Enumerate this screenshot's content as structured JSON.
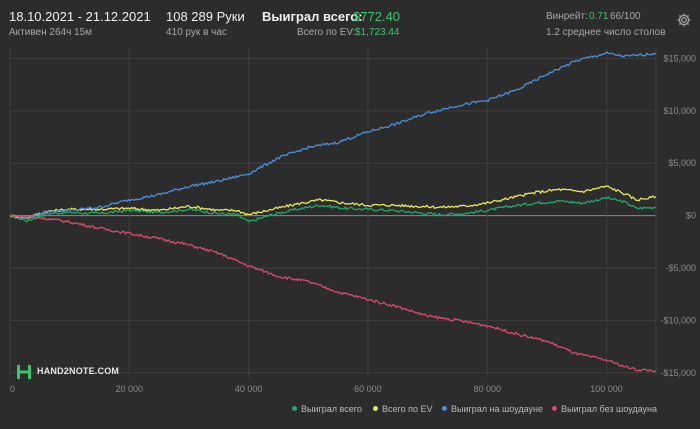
{
  "header": {
    "date_range": "18.10.2021 - 21.12.2021",
    "active_time": "Активен 264ч 15м",
    "hands": "108 289 Руки",
    "hands_per_hour": "410 рук в час",
    "won_total_label": "Выиграл всего:",
    "won_total_value": "$772.40",
    "ev_total_label": "Всего по EV:",
    "ev_total_value": "$1,723.44",
    "winrate_label": "Винрейт:",
    "winrate_value": "0.71",
    "winrate_hands": "66/100",
    "avg_tables": "1.2 среднее число столов"
  },
  "logo": {
    "text": "HAND2NOTE.COM"
  },
  "colors": {
    "background": "#2c2c2c",
    "grid": "#3e3e3e",
    "total": "#20a86a",
    "ev": "#e8e85a",
    "showdown": "#4a90d9",
    "non_showdown": "#d94a6e"
  },
  "chart_data": {
    "type": "line",
    "xlim": [
      0,
      108289
    ],
    "ylim": [
      -15500,
      16000
    ],
    "x_ticks": [
      {
        "v": 0,
        "label": "0"
      },
      {
        "v": 20000,
        "label": "20 000"
      },
      {
        "v": 40000,
        "label": "40 000"
      },
      {
        "v": 60000,
        "label": "60 000"
      },
      {
        "v": 80000,
        "label": "80 000"
      },
      {
        "v": 100000,
        "label": "100 000"
      }
    ],
    "y_ticks": [
      {
        "v": 15000,
        "label": "$15,000"
      },
      {
        "v": 10000,
        "label": "$10,000"
      },
      {
        "v": 5000,
        "label": "$5,000"
      },
      {
        "v": 0,
        "label": "$0"
      },
      {
        "v": -5000,
        "label": "-$5,000"
      },
      {
        "v": -10000,
        "label": "-$10,000"
      },
      {
        "v": -15000,
        "label": "-$15,000"
      }
    ],
    "grid": true,
    "legend_position": "bottom-right",
    "series": [
      {
        "name": "Выиграл всего",
        "color": "#20a86a",
        "points": [
          [
            0,
            0
          ],
          [
            3000,
            -500
          ],
          [
            6000,
            200
          ],
          [
            10000,
            300
          ],
          [
            15000,
            200
          ],
          [
            20000,
            500
          ],
          [
            25000,
            300
          ],
          [
            30000,
            600
          ],
          [
            35000,
            200
          ],
          [
            38000,
            100
          ],
          [
            40000,
            -600
          ],
          [
            44000,
            100
          ],
          [
            48000,
            600
          ],
          [
            52000,
            1000
          ],
          [
            56000,
            700
          ],
          [
            60000,
            600
          ],
          [
            64000,
            500
          ],
          [
            68000,
            300
          ],
          [
            72000,
            100
          ],
          [
            76000,
            200
          ],
          [
            80000,
            500
          ],
          [
            84000,
            900
          ],
          [
            88000,
            1200
          ],
          [
            92000,
            1400
          ],
          [
            96000,
            1200
          ],
          [
            100000,
            1700
          ],
          [
            103000,
            1300
          ],
          [
            105000,
            700
          ],
          [
            108289,
            800
          ]
        ]
      },
      {
        "name": "Всего по EV",
        "color": "#e8e85a",
        "points": [
          [
            0,
            0
          ],
          [
            3000,
            -200
          ],
          [
            6000,
            400
          ],
          [
            10000,
            600
          ],
          [
            15000,
            600
          ],
          [
            20000,
            700
          ],
          [
            25000,
            500
          ],
          [
            30000,
            900
          ],
          [
            35000,
            500
          ],
          [
            38000,
            500
          ],
          [
            40000,
            100
          ],
          [
            44000,
            600
          ],
          [
            48000,
            1100
          ],
          [
            52000,
            1500
          ],
          [
            56000,
            1200
          ],
          [
            60000,
            1000
          ],
          [
            64000,
            1000
          ],
          [
            68000,
            900
          ],
          [
            72000,
            800
          ],
          [
            76000,
            900
          ],
          [
            80000,
            1200
          ],
          [
            84000,
            1700
          ],
          [
            88000,
            2200
          ],
          [
            92000,
            2500
          ],
          [
            96000,
            2300
          ],
          [
            100000,
            2800
          ],
          [
            103000,
            2100
          ],
          [
            105000,
            1500
          ],
          [
            108289,
            1800
          ]
        ]
      },
      {
        "name": "Выиграл на шоудауне",
        "color": "#4a90d9",
        "points": [
          [
            0,
            0
          ],
          [
            3000,
            -200
          ],
          [
            6000,
            400
          ],
          [
            10000,
            500
          ],
          [
            15000,
            800
          ],
          [
            20000,
            1500
          ],
          [
            25000,
            2000
          ],
          [
            30000,
            2800
          ],
          [
            35000,
            3300
          ],
          [
            40000,
            4000
          ],
          [
            45000,
            5500
          ],
          [
            50000,
            6500
          ],
          [
            55000,
            7000
          ],
          [
            60000,
            8000
          ],
          [
            65000,
            8800
          ],
          [
            70000,
            9800
          ],
          [
            75000,
            10500
          ],
          [
            80000,
            11000
          ],
          [
            85000,
            12000
          ],
          [
            90000,
            13500
          ],
          [
            95000,
            14800
          ],
          [
            100000,
            15500
          ],
          [
            103000,
            15200
          ],
          [
            105000,
            15300
          ],
          [
            108289,
            15500
          ]
        ]
      },
      {
        "name": "Выиграл без шоудауна",
        "color": "#d94a6e",
        "points": [
          [
            0,
            0
          ],
          [
            5000,
            -200
          ],
          [
            10000,
            -600
          ],
          [
            15000,
            -1200
          ],
          [
            20000,
            -1700
          ],
          [
            25000,
            -2200
          ],
          [
            30000,
            -2800
          ],
          [
            35000,
            -3600
          ],
          [
            40000,
            -4800
          ],
          [
            45000,
            -5800
          ],
          [
            50000,
            -6300
          ],
          [
            55000,
            -7300
          ],
          [
            60000,
            -8000
          ],
          [
            65000,
            -8700
          ],
          [
            70000,
            -9600
          ],
          [
            75000,
            -10000
          ],
          [
            80000,
            -10500
          ],
          [
            85000,
            -11300
          ],
          [
            90000,
            -12000
          ],
          [
            95000,
            -13200
          ],
          [
            100000,
            -13800
          ],
          [
            103000,
            -14400
          ],
          [
            105000,
            -14700
          ],
          [
            108289,
            -14800
          ]
        ]
      }
    ]
  }
}
